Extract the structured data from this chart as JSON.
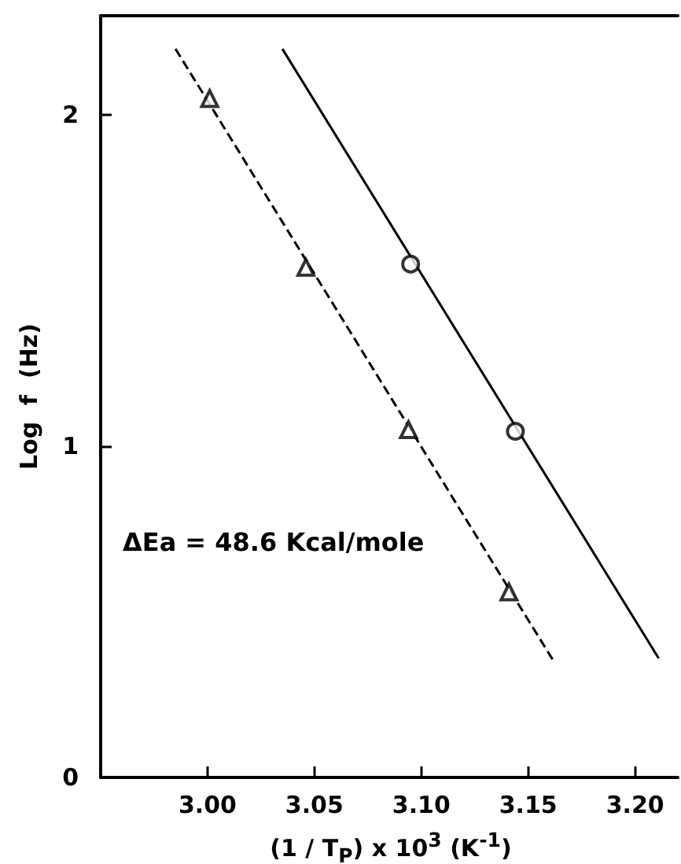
{
  "chart_data": {
    "type": "scatter",
    "xlabel": "(1 / T$_{P}$) x 10$^{3}$    (K$^{-1}$)",
    "ylabel": "Log  f  (Hz)",
    "annotations": [
      "ΔEa = 48.6  Kcal/mole"
    ],
    "xlim": [
      2.95,
      3.22
    ],
    "xticks": [
      {
        "value": 3.0,
        "label": "3.00"
      },
      {
        "value": 3.05,
        "label": "3.05"
      },
      {
        "value": 3.1,
        "label": "3.10"
      },
      {
        "value": 3.15,
        "label": "3.15"
      },
      {
        "value": 3.2,
        "label": "3.20"
      }
    ],
    "ylim": [
      0,
      2.3
    ],
    "yticks": [
      0,
      1,
      2
    ],
    "grid": false,
    "series": [
      {
        "marker": "triangle",
        "color": "#000000",
        "x": [
          3.001,
          3.046,
          3.094,
          3.141
        ],
        "values": [
          2.05,
          1.54,
          1.05,
          0.56
        ]
      },
      {
        "type": "line",
        "marker": "none",
        "line_style": "dashed",
        "color": "#000000",
        "x": [
          2.985,
          3.162
        ],
        "values": [
          2.2,
          0.35
        ]
      },
      {
        "marker": "circle",
        "color": "#000000",
        "x": [
          3.095,
          3.144
        ],
        "values": [
          1.55,
          1.045
        ]
      },
      {
        "type": "line",
        "marker": "none",
        "line_style": "solid",
        "color": "#000000",
        "x": [
          3.035,
          3.211
        ],
        "values": [
          2.2,
          0.36
        ]
      }
    ]
  }
}
